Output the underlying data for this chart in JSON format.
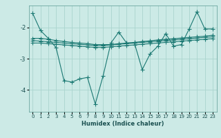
{
  "xlabel": "Humidex (Indice chaleur)",
  "ylabel": "",
  "background_color": "#cceae6",
  "grid_color": "#aad4ce",
  "line_color": "#1a7872",
  "x_values": [
    0,
    1,
    2,
    3,
    4,
    5,
    6,
    7,
    8,
    9,
    10,
    11,
    12,
    13,
    14,
    15,
    16,
    17,
    18,
    19,
    20,
    21,
    22,
    23
  ],
  "lines": [
    [
      -1.55,
      -2.1,
      -2.35,
      -2.65,
      -3.7,
      -3.75,
      -3.65,
      -3.6,
      -4.45,
      -3.55,
      -2.5,
      -2.15,
      -2.5,
      -2.5,
      -3.35,
      -2.85,
      -2.6,
      -2.2,
      -2.6,
      -2.55,
      -2.05,
      -1.5,
      -2.05,
      -2.05
    ],
    [
      -2.35,
      -2.35,
      -2.38,
      -2.42,
      -2.45,
      -2.48,
      -2.5,
      -2.52,
      -2.55,
      -2.55,
      -2.55,
      -2.52,
      -2.5,
      -2.48,
      -2.45,
      -2.43,
      -2.4,
      -2.38,
      -2.36,
      -2.34,
      -2.32,
      -2.3,
      -2.28,
      -2.25
    ],
    [
      -2.42,
      -2.44,
      -2.46,
      -2.48,
      -2.5,
      -2.52,
      -2.54,
      -2.56,
      -2.58,
      -2.58,
      -2.56,
      -2.54,
      -2.52,
      -2.5,
      -2.48,
      -2.46,
      -2.44,
      -2.42,
      -2.4,
      -2.38,
      -2.36,
      -2.34,
      -2.32,
      -2.3
    ],
    [
      -2.5,
      -2.5,
      -2.52,
      -2.54,
      -2.56,
      -2.58,
      -2.6,
      -2.62,
      -2.64,
      -2.64,
      -2.62,
      -2.6,
      -2.58,
      -2.56,
      -2.54,
      -2.52,
      -2.5,
      -2.48,
      -2.46,
      -2.44,
      -2.42,
      -2.4,
      -2.38,
      -2.36
    ]
  ],
  "ylim": [
    -4.7,
    -1.3
  ],
  "xlim": [
    -0.5,
    23.5
  ],
  "yticks": [
    -4,
    -3,
    -2
  ],
  "xticks": [
    0,
    1,
    2,
    3,
    4,
    5,
    6,
    7,
    8,
    9,
    10,
    11,
    12,
    13,
    14,
    15,
    16,
    17,
    18,
    19,
    20,
    21,
    22,
    23
  ],
  "marker": "+",
  "markersize": 4,
  "linewidth": 0.8
}
